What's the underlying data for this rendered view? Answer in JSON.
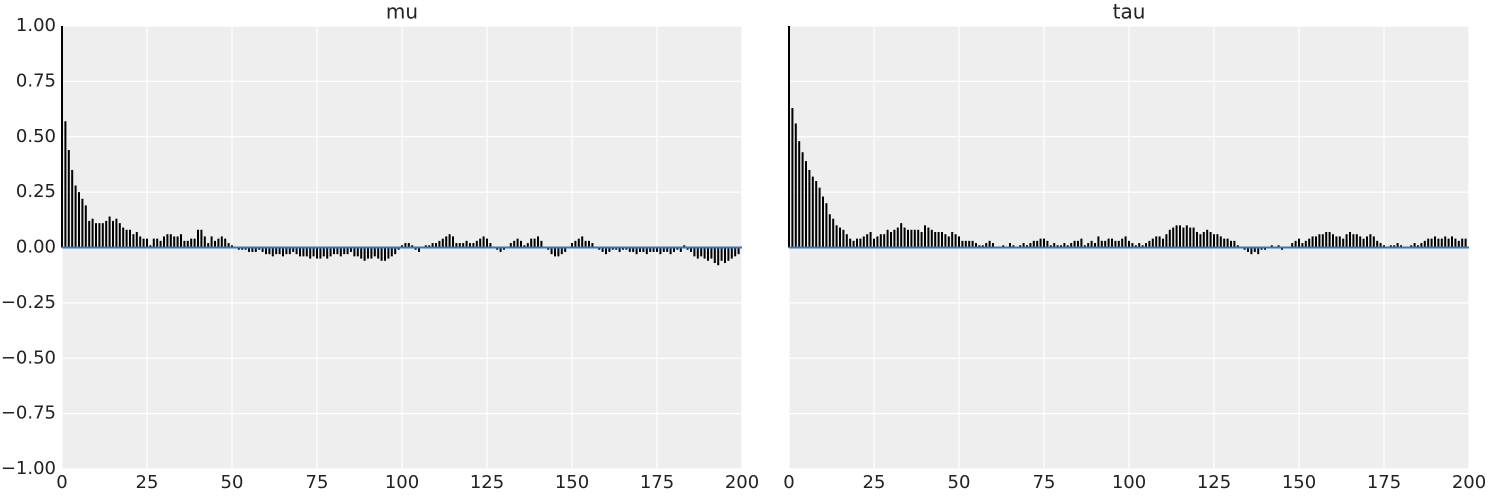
{
  "chart_data": [
    {
      "type": "bar",
      "title": "mu",
      "color": "#000000",
      "baseline_color": "#3b78b3",
      "grid": true,
      "ytick_labels": true,
      "xlim": [
        0,
        200
      ],
      "ylim": [
        -1,
        1
      ],
      "xticks": [
        0,
        25,
        50,
        75,
        100,
        125,
        150,
        175,
        200
      ],
      "yticks": [
        {
          "value": -1,
          "label": "−1.00"
        },
        {
          "value": -0.75,
          "label": "−0.75"
        },
        {
          "value": -0.5,
          "label": "−0.50"
        },
        {
          "value": -0.25,
          "label": "−0.25"
        },
        {
          "value": 0,
          "label": "0.00"
        },
        {
          "value": 0.25,
          "label": "0.25"
        },
        {
          "value": 0.5,
          "label": "0.50"
        },
        {
          "value": 0.75,
          "label": "0.75"
        },
        {
          "value": 1,
          "label": "1.00"
        }
      ],
      "x": [
        0,
        1,
        2,
        3,
        4,
        5,
        6,
        7,
        8,
        9,
        10,
        11,
        12,
        13,
        14,
        15,
        16,
        17,
        18,
        19,
        20,
        21,
        22,
        23,
        24,
        25,
        26,
        27,
        28,
        29,
        30,
        31,
        32,
        33,
        34,
        35,
        36,
        37,
        38,
        39,
        40,
        41,
        42,
        43,
        44,
        45,
        46,
        47,
        48,
        49,
        50,
        51,
        52,
        53,
        54,
        55,
        56,
        57,
        58,
        59,
        60,
        61,
        62,
        63,
        64,
        65,
        66,
        67,
        68,
        69,
        70,
        71,
        72,
        73,
        74,
        75,
        76,
        77,
        78,
        79,
        80,
        81,
        82,
        83,
        84,
        85,
        86,
        87,
        88,
        89,
        90,
        91,
        92,
        93,
        94,
        95,
        96,
        97,
        98,
        99,
        100,
        101,
        102,
        103,
        104,
        105,
        106,
        107,
        108,
        109,
        110,
        111,
        112,
        113,
        114,
        115,
        116,
        117,
        118,
        119,
        120,
        121,
        122,
        123,
        124,
        125,
        126,
        127,
        128,
        129,
        130,
        131,
        132,
        133,
        134,
        135,
        136,
        137,
        138,
        139,
        140,
        141,
        142,
        143,
        144,
        145,
        146,
        147,
        148,
        149,
        150,
        151,
        152,
        153,
        154,
        155,
        156,
        157,
        158,
        159,
        160,
        161,
        162,
        163,
        164,
        165,
        166,
        167,
        168,
        169,
        170,
        171,
        172,
        173,
        174,
        175,
        176,
        177,
        178,
        179,
        180,
        181,
        182,
        183,
        184,
        185,
        186,
        187,
        188,
        189,
        190,
        191,
        192,
        193,
        194,
        195,
        196,
        197,
        198,
        199
      ],
      "values": [
        1,
        0.57,
        0.44,
        0.35,
        0.28,
        0.25,
        0.22,
        0.19,
        0.12,
        0.13,
        0.11,
        0.11,
        0.11,
        0.12,
        0.14,
        0.12,
        0.13,
        0.11,
        0.09,
        0.08,
        0.08,
        0.06,
        0.07,
        0.05,
        0.04,
        0.04,
        0.01,
        0.04,
        0.04,
        0.03,
        0.05,
        0.06,
        0.06,
        0.05,
        0.05,
        0.06,
        0.03,
        0.03,
        0.04,
        0.04,
        0.08,
        0.08,
        0.05,
        0.02,
        0.05,
        0.03,
        0.04,
        0.05,
        0.04,
        0.02,
        0.01,
        0,
        -0.01,
        -0.01,
        -0.01,
        -0.02,
        -0.02,
        -0.02,
        -0.01,
        -0.02,
        -0.03,
        -0.03,
        -0.04,
        -0.03,
        -0.03,
        -0.04,
        -0.03,
        -0.03,
        -0.02,
        -0.03,
        -0.04,
        -0.04,
        -0.04,
        -0.05,
        -0.04,
        -0.05,
        -0.05,
        -0.04,
        -0.05,
        -0.04,
        -0.03,
        -0.03,
        -0.04,
        -0.03,
        -0.03,
        -0.02,
        -0.04,
        -0.04,
        -0.05,
        -0.06,
        -0.05,
        -0.05,
        -0.04,
        -0.05,
        -0.06,
        -0.06,
        -0.05,
        -0.04,
        -0.03,
        -0.01,
        0.01,
        0.02,
        0.02,
        0.01,
        -0.01,
        -0.02,
        0,
        0.01,
        0.01,
        0.02,
        0.02,
        0.03,
        0.04,
        0.05,
        0.06,
        0.05,
        0.02,
        0.02,
        0.02,
        0.03,
        0.02,
        0.02,
        0.03,
        0.04,
        0.05,
        0.04,
        0.02,
        0,
        -0.01,
        -0.02,
        -0.01,
        0,
        0.02,
        0.03,
        0.04,
        0.03,
        0.01,
        0.02,
        0.04,
        0.04,
        0.05,
        0.03,
        0,
        -0.01,
        -0.03,
        -0.04,
        -0.04,
        -0.03,
        -0.02,
        0,
        0.02,
        0.03,
        0.04,
        0.05,
        0.03,
        0.03,
        0.02,
        0,
        -0.01,
        -0.02,
        -0.03,
        -0.02,
        -0.01,
        -0.01,
        -0.02,
        -0.01,
        -0.01,
        -0.02,
        -0.02,
        -0.03,
        -0.02,
        -0.02,
        -0.03,
        -0.02,
        -0.02,
        -0.02,
        -0.03,
        -0.02,
        -0.02,
        -0.03,
        -0.02,
        -0.01,
        -0.02,
        0.01,
        -0.01,
        -0.02,
        -0.04,
        -0.05,
        -0.04,
        -0.05,
        -0.06,
        -0.05,
        -0.07,
        -0.08,
        -0.06,
        -0.07,
        -0.06,
        -0.05,
        -0.04,
        -0.03
      ]
    },
    {
      "type": "bar",
      "title": "tau",
      "color": "#000000",
      "baseline_color": "#3b78b3",
      "grid": true,
      "ytick_labels": false,
      "xlim": [
        0,
        200
      ],
      "ylim": [
        -1,
        1
      ],
      "xticks": [
        0,
        25,
        50,
        75,
        100,
        125,
        150,
        175,
        200
      ],
      "yticks": [
        -1,
        -0.75,
        -0.5,
        -0.25,
        0,
        0.25,
        0.5,
        0.75,
        1
      ],
      "x": [
        0,
        1,
        2,
        3,
        4,
        5,
        6,
        7,
        8,
        9,
        10,
        11,
        12,
        13,
        14,
        15,
        16,
        17,
        18,
        19,
        20,
        21,
        22,
        23,
        24,
        25,
        26,
        27,
        28,
        29,
        30,
        31,
        32,
        33,
        34,
        35,
        36,
        37,
        38,
        39,
        40,
        41,
        42,
        43,
        44,
        45,
        46,
        47,
        48,
        49,
        50,
        51,
        52,
        53,
        54,
        55,
        56,
        57,
        58,
        59,
        60,
        61,
        62,
        63,
        64,
        65,
        66,
        67,
        68,
        69,
        70,
        71,
        72,
        73,
        74,
        75,
        76,
        77,
        78,
        79,
        80,
        81,
        82,
        83,
        84,
        85,
        86,
        87,
        88,
        89,
        90,
        91,
        92,
        93,
        94,
        95,
        96,
        97,
        98,
        99,
        100,
        101,
        102,
        103,
        104,
        105,
        106,
        107,
        108,
        109,
        110,
        111,
        112,
        113,
        114,
        115,
        116,
        117,
        118,
        119,
        120,
        121,
        122,
        123,
        124,
        125,
        126,
        127,
        128,
        129,
        130,
        131,
        132,
        133,
        134,
        135,
        136,
        137,
        138,
        139,
        140,
        141,
        142,
        143,
        144,
        145,
        146,
        147,
        148,
        149,
        150,
        151,
        152,
        153,
        154,
        155,
        156,
        157,
        158,
        159,
        160,
        161,
        162,
        163,
        164,
        165,
        166,
        167,
        168,
        169,
        170,
        171,
        172,
        173,
        174,
        175,
        176,
        177,
        178,
        179,
        180,
        181,
        182,
        183,
        184,
        185,
        186,
        187,
        188,
        189,
        190,
        191,
        192,
        193,
        194,
        195,
        196,
        197,
        198,
        199
      ],
      "values": [
        1,
        0.63,
        0.56,
        0.48,
        0.43,
        0.39,
        0.35,
        0.32,
        0.3,
        0.27,
        0.23,
        0.2,
        0.15,
        0.13,
        0.1,
        0.09,
        0.08,
        0.06,
        0.04,
        0.03,
        0.04,
        0.04,
        0.05,
        0.06,
        0.07,
        0.04,
        0.05,
        0.06,
        0.06,
        0.08,
        0.07,
        0.08,
        0.09,
        0.11,
        0.09,
        0.08,
        0.08,
        0.08,
        0.08,
        0.07,
        0.1,
        0.09,
        0.08,
        0.07,
        0.07,
        0.07,
        0.06,
        0.05,
        0.07,
        0.06,
        0.05,
        0.03,
        0.03,
        0.03,
        0.03,
        0.02,
        0.01,
        0.01,
        0.02,
        0.03,
        0.02,
        0,
        0,
        0.01,
        0,
        0.02,
        0.01,
        0,
        0.01,
        0.02,
        0.01,
        0.02,
        0.03,
        0.03,
        0.04,
        0.04,
        0.03,
        0.01,
        0.02,
        0.01,
        0.01,
        0.02,
        0.01,
        0.02,
        0.03,
        0.03,
        0.04,
        0.01,
        0.02,
        0.03,
        0.02,
        0.05,
        0.03,
        0.03,
        0.04,
        0.04,
        0.03,
        0.03,
        0.04,
        0.05,
        0.03,
        0.02,
        0.01,
        0.02,
        0.01,
        0.02,
        0.03,
        0.04,
        0.05,
        0.05,
        0.04,
        0.06,
        0.08,
        0.09,
        0.1,
        0.1,
        0.09,
        0.1,
        0.09,
        0.09,
        0.07,
        0.06,
        0.07,
        0.08,
        0.07,
        0.06,
        0.06,
        0.05,
        0.04,
        0.04,
        0.03,
        0.03,
        0.01,
        0,
        -0.01,
        -0.02,
        -0.03,
        -0.02,
        -0.03,
        -0.01,
        -0.01,
        0,
        0.01,
        0,
        0.01,
        -0.01,
        0,
        0,
        0.02,
        0.03,
        0.04,
        0.02,
        0.03,
        0.04,
        0.05,
        0.05,
        0.06,
        0.06,
        0.07,
        0.07,
        0.06,
        0.05,
        0.05,
        0.04,
        0.06,
        0.07,
        0.06,
        0.06,
        0.05,
        0.04,
        0.05,
        0.06,
        0.05,
        0.03,
        0.02,
        0.01,
        0,
        0.01,
        0.01,
        0.02,
        0.01,
        0,
        0,
        0.01,
        0.02,
        0.01,
        0.02,
        0.03,
        0.04,
        0.04,
        0.05,
        0.04,
        0.04,
        0.05,
        0.04,
        0.05,
        0.04,
        0.03,
        0.04,
        0.04
      ]
    }
  ]
}
